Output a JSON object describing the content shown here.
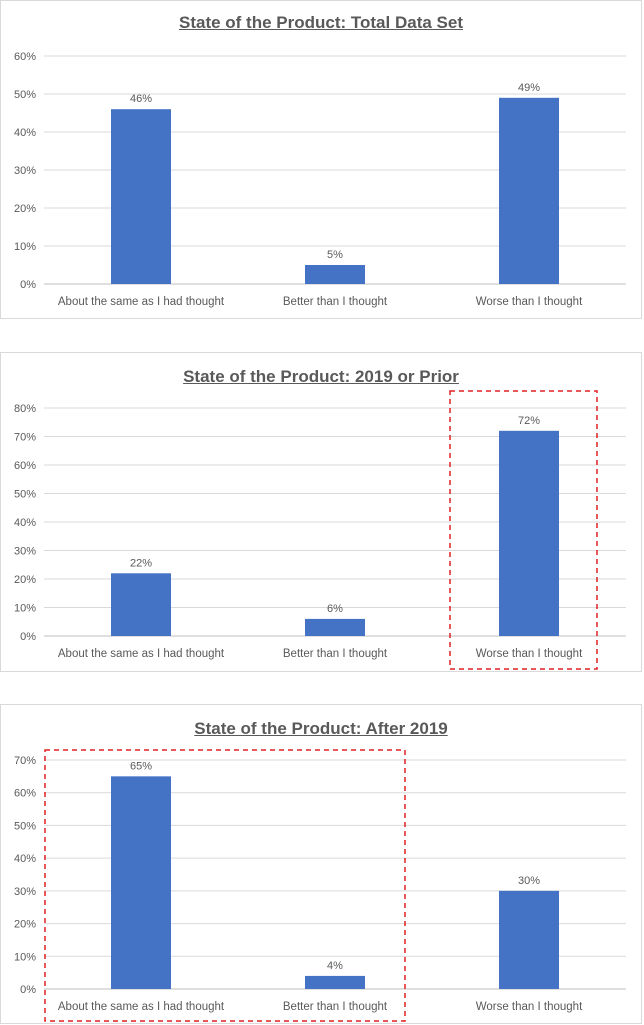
{
  "chart_data": [
    {
      "type": "bar",
      "title": "State of the Product: Total Data Set",
      "categories": [
        "About the same as I had thought",
        "Better than I thought",
        "Worse than I thought"
      ],
      "values": [
        46,
        5,
        49
      ],
      "data_labels": [
        "46%",
        "5%",
        "49%"
      ],
      "ylim": [
        0,
        60
      ],
      "yticks": [
        "0%",
        "10%",
        "20%",
        "30%",
        "40%",
        "50%",
        "60%"
      ],
      "grid": true,
      "highlight": null
    },
    {
      "type": "bar",
      "title": "State of the Product: 2019 or Prior",
      "categories": [
        "About the same as I had thought",
        "Better than I thought",
        "Worse than I thought"
      ],
      "values": [
        22,
        6,
        72
      ],
      "data_labels": [
        "22%",
        "6%",
        "72%"
      ],
      "ylim": [
        0,
        80
      ],
      "yticks": [
        "0%",
        "10%",
        "20%",
        "30%",
        "40%",
        "50%",
        "60%",
        "70%",
        "80%"
      ],
      "grid": true,
      "highlight": "Worse than I thought"
    },
    {
      "type": "bar",
      "title": "State of the Product: After 2019",
      "categories": [
        "About the same as I had thought",
        "Better than I thought",
        "Worse than I thought"
      ],
      "values": [
        65,
        4,
        30
      ],
      "data_labels": [
        "65%",
        "4%",
        "30%"
      ],
      "ylim": [
        0,
        70
      ],
      "yticks": [
        "0%",
        "10%",
        "20%",
        "30%",
        "40%",
        "50%",
        "60%",
        "70%"
      ],
      "grid": true,
      "highlight": "About the same as I had thought + Better than I thought"
    }
  ],
  "colors": {
    "bar": "#4472c4",
    "grid": "#d9d9d9",
    "axis_text": "#595959",
    "highlight_box": "#e02020"
  }
}
